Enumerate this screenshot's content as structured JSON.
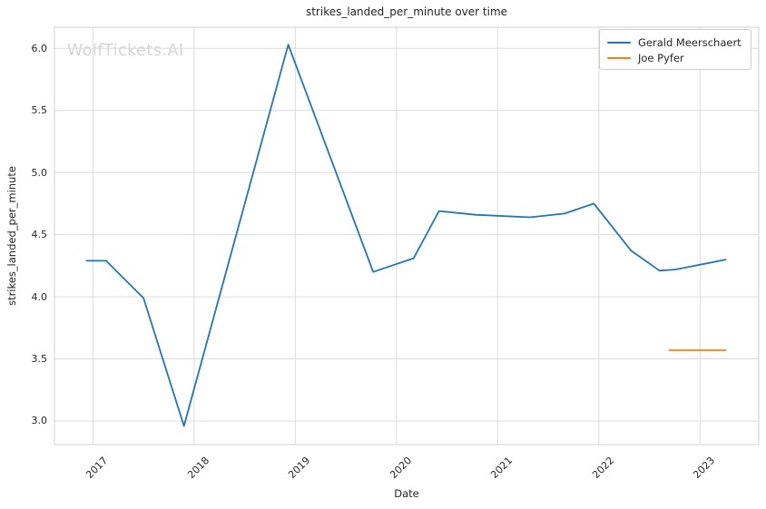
{
  "watermark": "WolfTickets.AI",
  "chart_data": {
    "type": "line",
    "title": "strikes_landed_per_minute over time",
    "xlabel": "Date",
    "ylabel": "strikes_landed_per_minute",
    "xlim": [
      2016.62,
      2023.58
    ],
    "ylim": [
      2.81,
      6.17
    ],
    "grid": true,
    "legend_position": "upper-right",
    "xtick_values": [
      2017,
      2018,
      2019,
      2020,
      2021,
      2022,
      2023
    ],
    "xtick_labels": [
      "2017",
      "2018",
      "2019",
      "2020",
      "2021",
      "2022",
      "2023"
    ],
    "ytick_values": [
      3.0,
      3.5,
      4.0,
      4.5,
      5.0,
      5.5,
      6.0
    ],
    "ytick_labels": [
      "3.0",
      "3.5",
      "4.0",
      "4.5",
      "5.0",
      "5.5",
      "6.0"
    ],
    "series": [
      {
        "name": "Gerald Meerschaert",
        "color": "#1f77b4",
        "x": [
          2016.93,
          2017.13,
          2017.5,
          2017.9,
          2018.93,
          2019.77,
          2020.17,
          2020.42,
          2020.78,
          2021.32,
          2021.66,
          2021.95,
          2022.32,
          2022.6,
          2022.76,
          2023.26
        ],
        "y": [
          4.29,
          4.29,
          3.99,
          2.96,
          6.03,
          4.2,
          4.31,
          4.69,
          4.66,
          4.64,
          4.67,
          4.75,
          4.37,
          4.21,
          4.22,
          4.3
        ]
      },
      {
        "name": "Joe Pyfer",
        "color": "#ff7f0e",
        "x": [
          2022.69,
          2023.26
        ],
        "y": [
          3.57,
          3.57
        ]
      }
    ]
  }
}
